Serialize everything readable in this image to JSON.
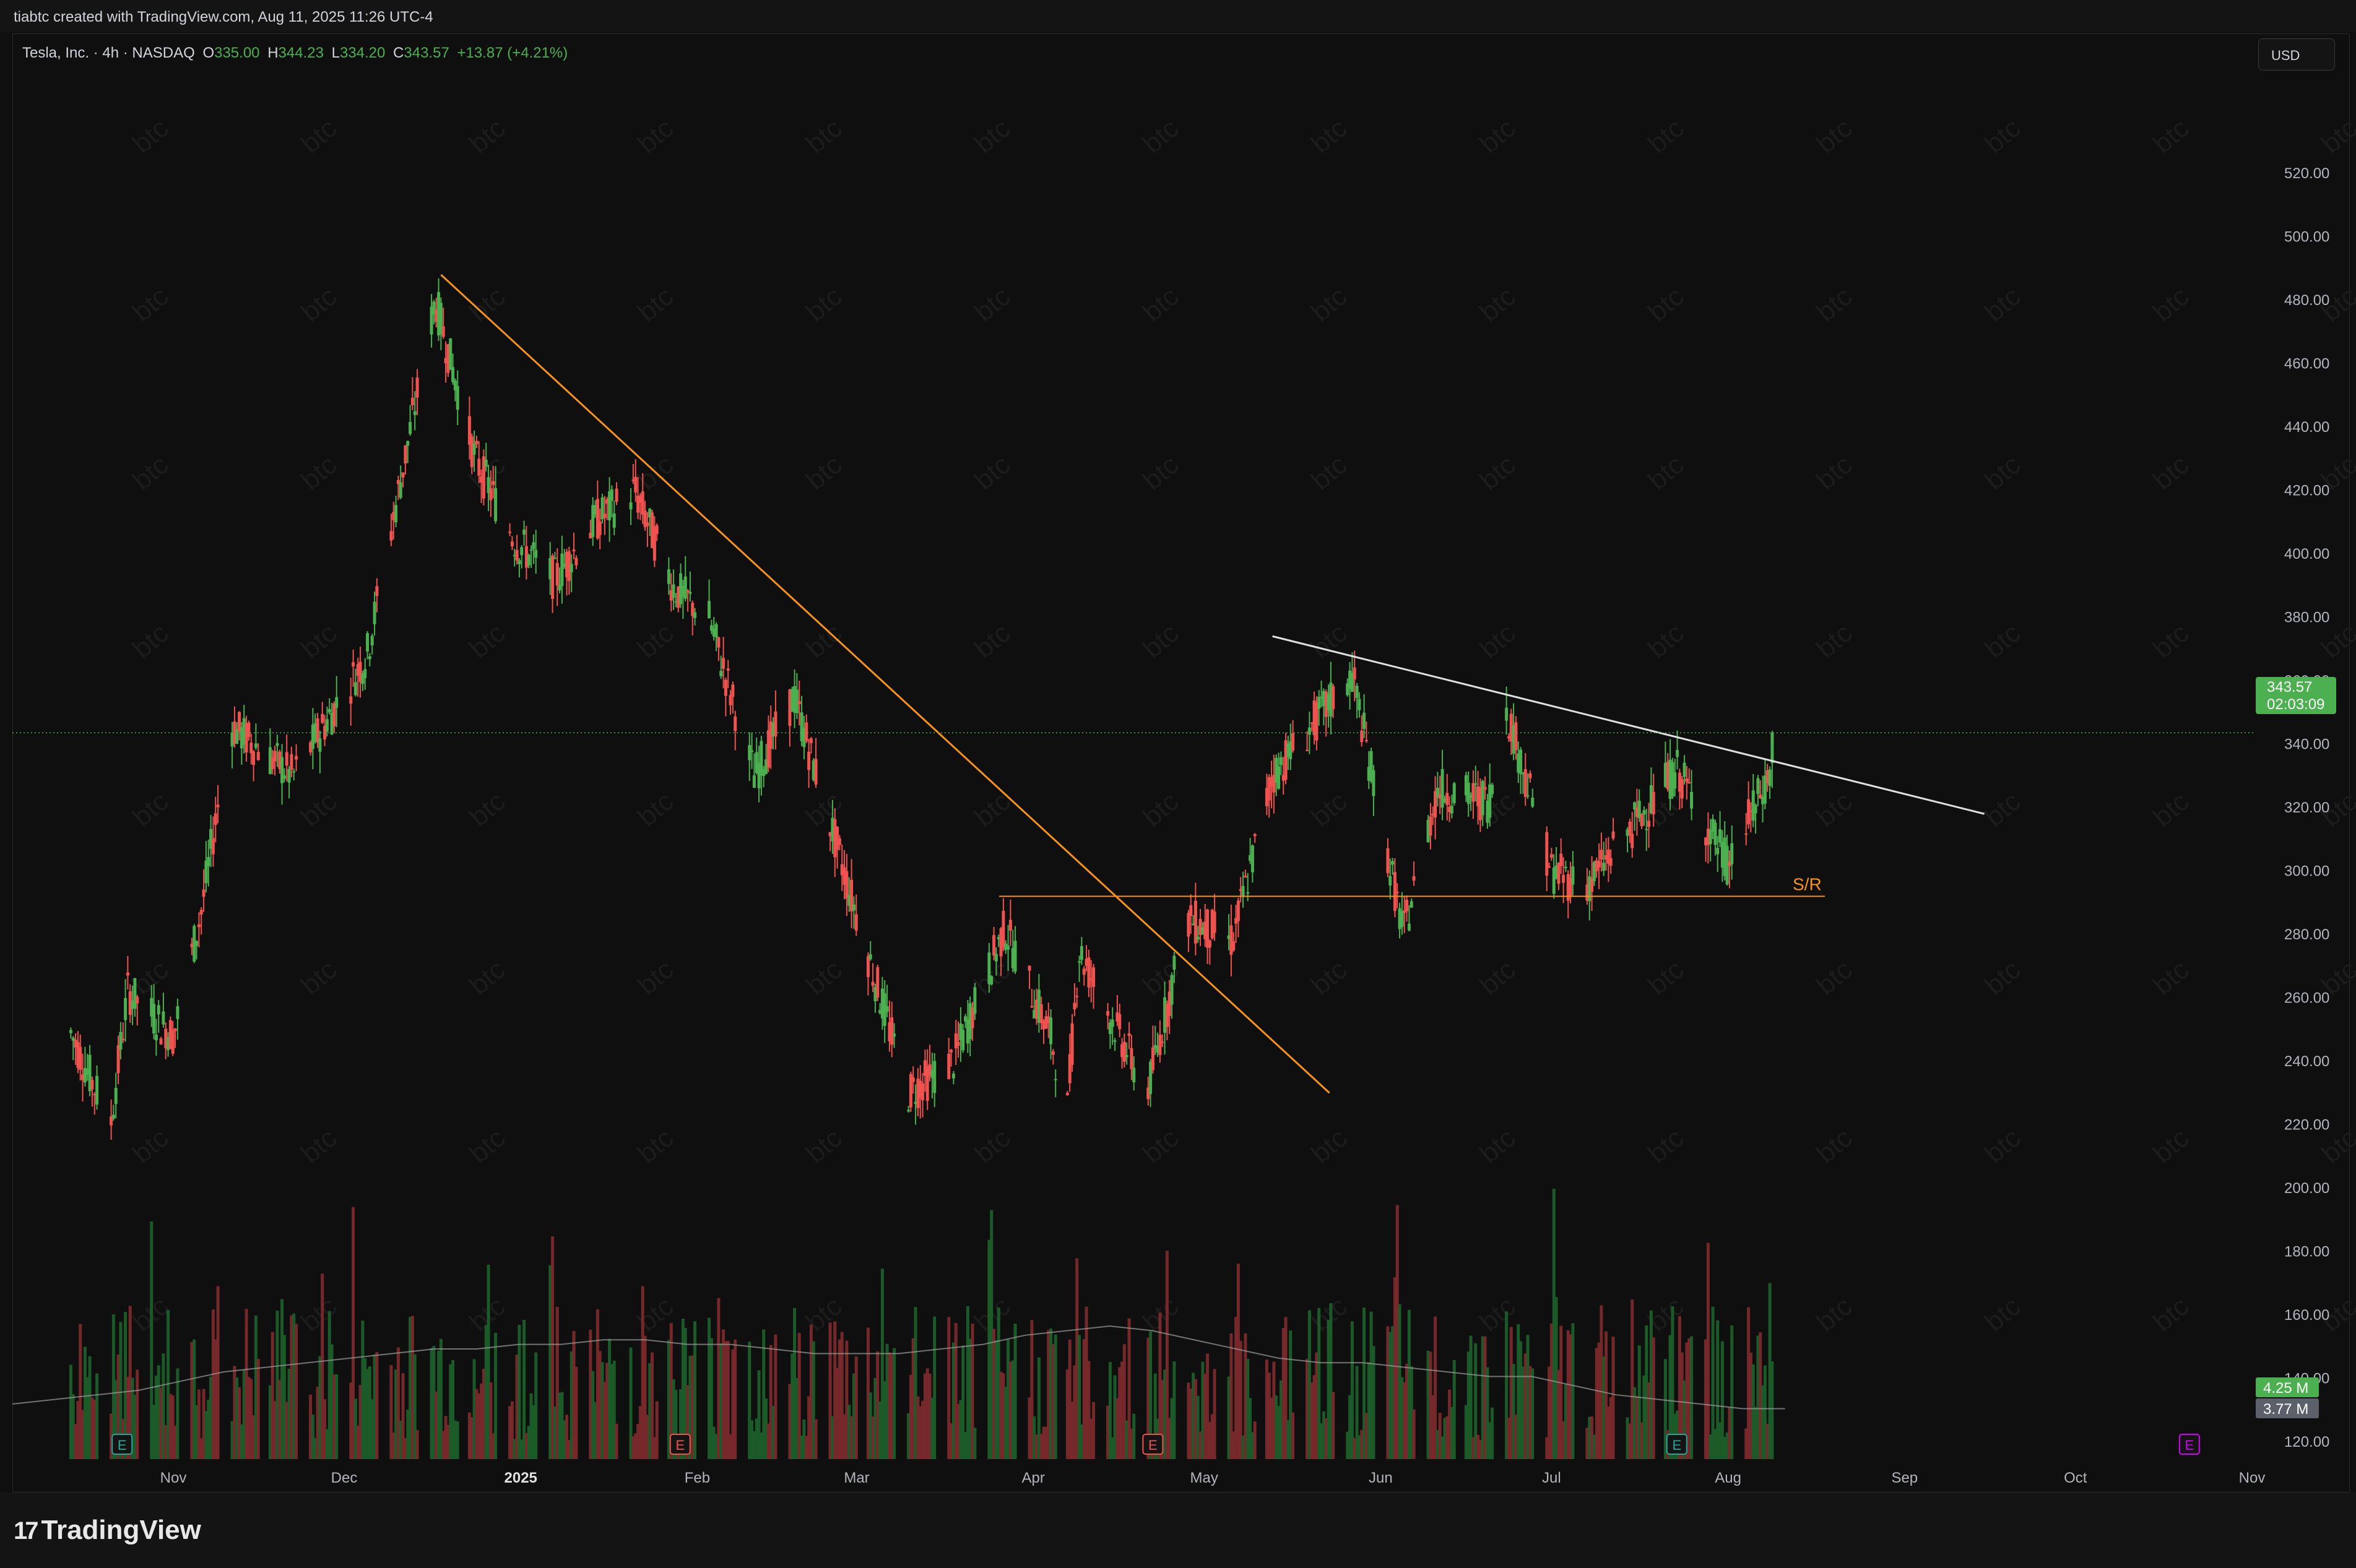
{
  "header": {
    "credit": "tiabtc created with TradingView.com, Aug 11, 2025 11:26 UTC-4"
  },
  "symbol": {
    "name": "Tesla, Inc. · 4h · NASDAQ",
    "open_label": "O",
    "open": "335.00",
    "high_label": "H",
    "high": "344.23",
    "low_label": "L",
    "low": "334.20",
    "close_label": "C",
    "close": "343.57",
    "change": "+13.87 (+4.21%)"
  },
  "currency_button": "USD",
  "price_badge": {
    "price": "343.57",
    "countdown": "02:03:09"
  },
  "volume_badges": {
    "volume": "4.25 M",
    "volume_ma": "3.77 M"
  },
  "watermark_text": "btc",
  "footer": {
    "logo_text": "TradingView",
    "logo_mark": "17"
  },
  "colors": {
    "up": "#26a69a",
    "up_green": "#4caf50",
    "down": "#ef5350",
    "trend_orange": "#f7931a",
    "trend_white": "#e0e0e0",
    "earnings": "#26a69a",
    "background": "#0f0f0f"
  },
  "chart_data": {
    "type": "candlestick",
    "interval": "4h",
    "ylim": [
      115,
      530
    ],
    "y_ticks": [
      "520.00",
      "500.00",
      "480.00",
      "460.00",
      "440.00",
      "420.00",
      "400.00",
      "380.00",
      "360.00",
      "340.00",
      "320.00",
      "300.00",
      "280.00",
      "260.00",
      "240.00",
      "220.00",
      "200.00",
      "180.00",
      "160.00",
      "140.00",
      "120.00"
    ],
    "x_ticks": [
      "Nov",
      "Dec",
      "2025",
      "Feb",
      "Mar",
      "Apr",
      "May",
      "Jun",
      "Jul",
      "Aug",
      "Sep",
      "Oct",
      "Nov"
    ],
    "grid": false,
    "last_price": 343.57,
    "price_path": [
      {
        "x": "2024-10-14",
        "y": 249
      },
      {
        "x": "2024-10-21",
        "y": 220
      },
      {
        "x": "2024-10-24",
        "y": 262
      },
      {
        "x": "2024-11-01",
        "y": 248
      },
      {
        "x": "2024-11-06",
        "y": 288
      },
      {
        "x": "2024-11-11",
        "y": 346
      },
      {
        "x": "2024-11-22",
        "y": 330
      },
      {
        "x": "2024-12-05",
        "y": 368
      },
      {
        "x": "2024-12-11",
        "y": 424
      },
      {
        "x": "2024-12-17",
        "y": 480
      },
      {
        "x": "2024-12-24",
        "y": 430
      },
      {
        "x": "2024-12-31",
        "y": 404
      },
      {
        "x": "2025-01-07",
        "y": 392
      },
      {
        "x": "2025-01-14",
        "y": 410
      },
      {
        "x": "2025-01-21",
        "y": 420
      },
      {
        "x": "2025-01-28",
        "y": 389
      },
      {
        "x": "2025-02-03",
        "y": 380
      },
      {
        "x": "2025-02-11",
        "y": 330
      },
      {
        "x": "2025-02-18",
        "y": 355
      },
      {
        "x": "2025-02-28",
        "y": 292
      },
      {
        "x": "2025-03-10",
        "y": 230
      },
      {
        "x": "2025-03-18",
        "y": 240
      },
      {
        "x": "2025-03-27",
        "y": 282
      },
      {
        "x": "2025-04-04",
        "y": 248
      },
      {
        "x": "2025-04-07",
        "y": 225
      },
      {
        "x": "2025-04-09",
        "y": 275
      },
      {
        "x": "2025-04-21",
        "y": 230
      },
      {
        "x": "2025-04-28",
        "y": 285
      },
      {
        "x": "2025-05-06",
        "y": 278
      },
      {
        "x": "2025-05-13",
        "y": 330
      },
      {
        "x": "2025-05-27",
        "y": 362
      },
      {
        "x": "2025-06-05",
        "y": 280
      },
      {
        "x": "2025-06-11",
        "y": 326
      },
      {
        "x": "2025-06-20",
        "y": 322
      },
      {
        "x": "2025-06-23",
        "y": 352
      },
      {
        "x": "2025-07-01",
        "y": 300
      },
      {
        "x": "2025-07-07",
        "y": 295
      },
      {
        "x": "2025-07-23",
        "y": 332
      },
      {
        "x": "2025-08-01",
        "y": 302
      },
      {
        "x": "2025-08-08",
        "y": 329
      },
      {
        "x": "2025-08-11",
        "y": 343.57
      }
    ],
    "volume_ma_path": [
      130,
      131,
      132,
      133,
      135,
      137,
      138,
      139,
      140,
      141,
      142,
      142,
      143,
      143,
      144,
      144,
      143,
      143,
      142,
      141,
      141,
      141,
      142,
      143,
      145,
      146,
      147,
      146,
      144,
      142,
      140,
      139,
      139,
      138,
      137,
      136,
      136,
      134,
      132,
      131,
      130,
      129,
      129
    ],
    "volume_ylim": [
      118,
      200
    ],
    "earnings_markers": [
      {
        "x": "2024-10-23",
        "color": "#26a69a",
        "label": "E"
      },
      {
        "x": "2025-01-29",
        "color": "#ef5350",
        "label": "E"
      },
      {
        "x": "2025-04-22",
        "color": "#ef5350",
        "label": "E"
      },
      {
        "x": "2025-07-23",
        "color": "#26a69a",
        "label": "E"
      },
      {
        "x": "2025-10-21",
        "color": "#d500f9",
        "label": "E"
      }
    ],
    "annotations": [
      {
        "type": "trendline",
        "color": "#f7931a",
        "from": {
          "x": "2024-12-18",
          "y": 488
        },
        "to": {
          "x": "2025-05-23",
          "y": 230
        }
      },
      {
        "type": "trendline",
        "color": "#e0e0e0",
        "from": {
          "x": "2025-05-13",
          "y": 374
        },
        "to": {
          "x": "2025-09-15",
          "y": 318
        }
      },
      {
        "type": "horizontal",
        "color": "#f7931a",
        "y": 292,
        "from": "2025-03-26",
        "to": "2025-08-18",
        "label": "S/R"
      }
    ]
  }
}
